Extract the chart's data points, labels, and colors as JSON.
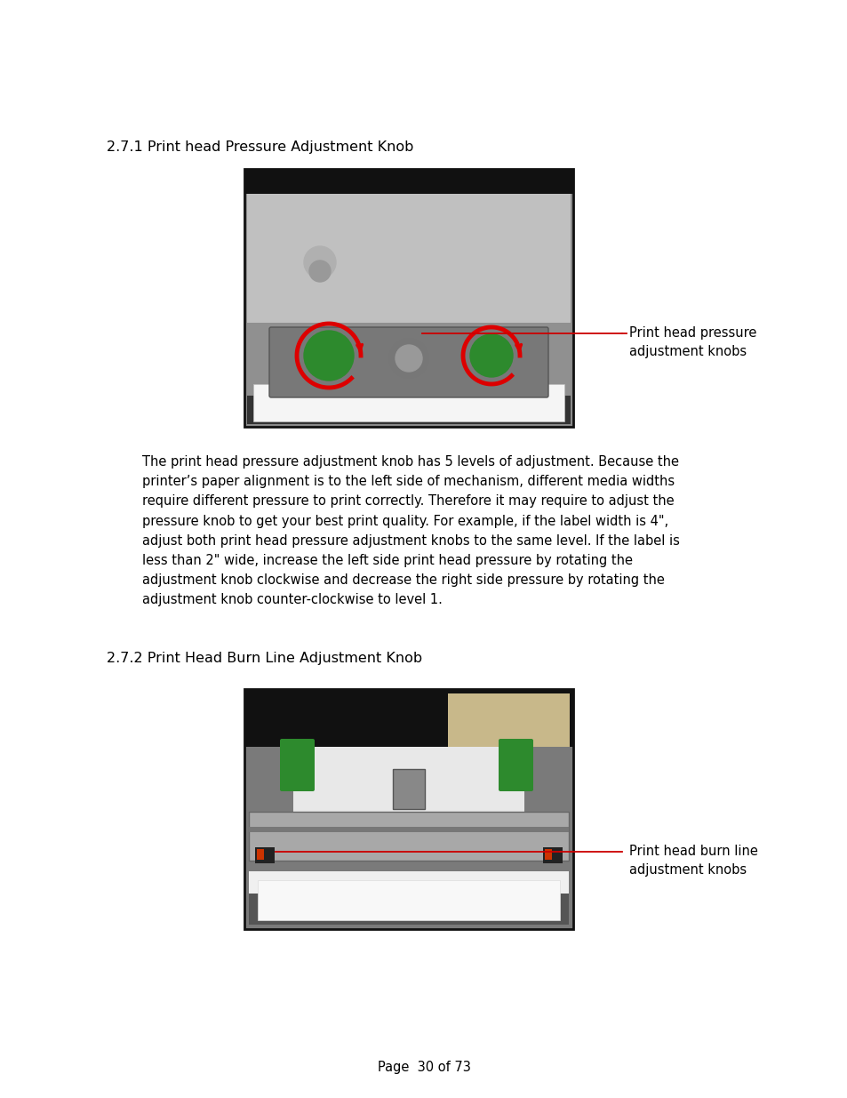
{
  "background_color": "#ffffff",
  "section1_title": "2.7.1 Print head Pressure Adjustment Knob",
  "section2_title": "2.7.2 Print Head Burn Line Adjustment Knob",
  "body_text": "The print head pressure adjustment knob has 5 levels of adjustment. Because the\nprinter’s paper alignment is to the left side of mechanism, different media widths\nrequire different pressure to print correctly. Therefore it may require to adjust the\npressure knob to get your best print quality. For example, if the label width is 4\",\nadjust both print head pressure adjustment knobs to the same level. If the label is\nless than 2\" wide, increase the left side print head pressure by rotating the\nadjustment knob clockwise and decrease the right side pressure by rotating the\nadjustment knob counter-clockwise to level 1.",
  "label1": "Print head pressure\nadjustment knobs",
  "label2": "Print head burn line\nadjustment knobs",
  "page_text": "Page  30 of 73",
  "title_fontsize": 11.5,
  "body_fontsize": 10.5,
  "label_fontsize": 10.5,
  "page_fontsize": 10.5
}
